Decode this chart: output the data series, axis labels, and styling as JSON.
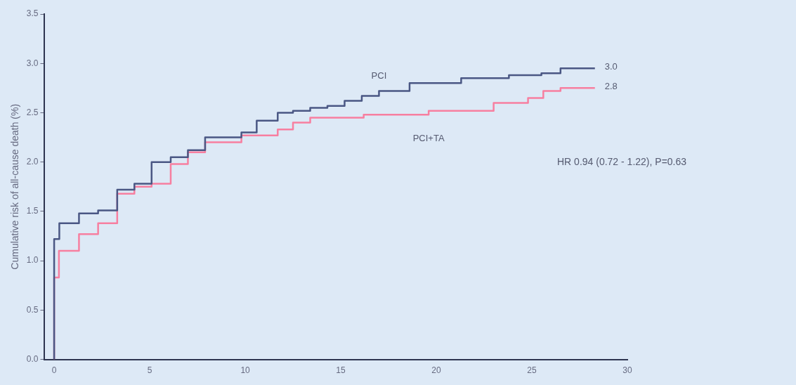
{
  "chart_data": {
    "type": "step",
    "ylabel": "Cumulative risk of all-cause death (%)",
    "annotations": [
      "HR 0.94 (0.72 - 1.22), P=0.63"
    ],
    "xlim": [
      -0.5,
      30
    ],
    "xticks": [
      0,
      5,
      10,
      15,
      20,
      25,
      30
    ],
    "ylim": [
      0,
      3.5
    ],
    "yticks": [
      {
        "value": 0,
        "label": "0.0"
      },
      {
        "value": 0.5,
        "label": "0.5"
      },
      {
        "value": 1,
        "label": "1.0"
      },
      {
        "value": 1.5,
        "label": "1.5"
      },
      {
        "value": 2,
        "label": "2.0"
      },
      {
        "value": 2.5,
        "label": "2.5"
      },
      {
        "value": 3,
        "label": "3.0"
      },
      {
        "value": 3.5,
        "label": "3.5"
      }
    ],
    "grid": false,
    "legend": false,
    "marker": "none",
    "line_style": "solid",
    "series": [
      {
        "name": "PCI",
        "color": "#4a5784",
        "x": [
          0,
          0.27,
          1.3,
          2.3,
          3.3,
          4.2,
          5.1,
          6.1,
          7.0,
          7.9,
          9.8,
          10.6,
          11.7,
          12.5,
          13.4,
          14.3,
          15.2,
          16.1,
          17.0,
          18.6,
          21.3,
          23.8,
          25.5,
          26.5,
          27.2,
          28.3
        ],
        "values": [
          0,
          1.22,
          1.38,
          1.48,
          1.51,
          1.72,
          1.78,
          2.0,
          2.05,
          2.12,
          2.25,
          2.3,
          2.42,
          2.5,
          2.52,
          2.55,
          2.57,
          2.62,
          2.67,
          2.72,
          2.8,
          2.85,
          2.88,
          2.9,
          2.95,
          2.95
        ],
        "value_labels": [
          null,
          null,
          null,
          null,
          null,
          null,
          null,
          null,
          null,
          null,
          null,
          null,
          null,
          null,
          null,
          null,
          null,
          null,
          null,
          null,
          null,
          null,
          null,
          null,
          null,
          "3.0"
        ]
      },
      {
        "name": "PCI+TA",
        "color": "#f77fa0",
        "x": [
          0,
          0.25,
          1.3,
          2.3,
          3.3,
          4.2,
          5.1,
          6.1,
          7.0,
          7.9,
          9.8,
          11.7,
          12.5,
          13.4,
          16.2,
          19.6,
          23.0,
          24.8,
          25.6,
          26.5,
          27.2,
          28.3
        ],
        "values": [
          0,
          0.83,
          1.1,
          1.27,
          1.38,
          1.68,
          1.75,
          1.78,
          1.98,
          2.1,
          2.2,
          2.27,
          2.33,
          2.4,
          2.45,
          2.48,
          2.52,
          2.6,
          2.65,
          2.72,
          2.75,
          2.75
        ],
        "value_labels": [
          null,
          null,
          null,
          null,
          null,
          null,
          null,
          null,
          null,
          null,
          null,
          null,
          null,
          null,
          null,
          null,
          null,
          null,
          null,
          null,
          null,
          "2.8"
        ]
      }
    ]
  }
}
